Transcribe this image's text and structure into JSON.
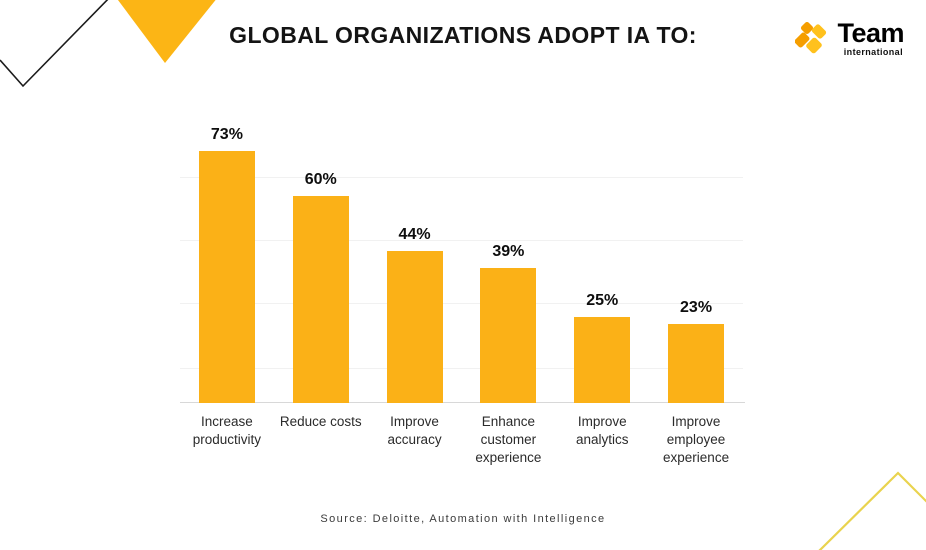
{
  "page": {
    "title": "GLOBAL ORGANIZATIONS ADOPT IA TO:",
    "source": "Source: Deloitte, Automation with Intelligence"
  },
  "logo": {
    "name": "Team",
    "subtitle": "international",
    "icon": "team-pinwheel-icon"
  },
  "colors": {
    "bar": "#FBB117",
    "logo_dark": "#F59E00",
    "logo_bright": "#FFC11D",
    "corner_diamond": "#FCB515",
    "corner_outline": "#1b1b1b",
    "peak_line": "#E9D34E",
    "gridline": "#F1F1F1",
    "baseline": "#D8D8D8",
    "title_text": "#141414"
  },
  "chart_data": {
    "type": "bar",
    "title": "GLOBAL ORGANIZATIONS ADOPT IA TO:",
    "categories": [
      "Increase productivity",
      "Reduce costs",
      "Improve accuracy",
      "Enhance customer experience",
      "Improve analytics",
      "Improve employee experience"
    ],
    "values": [
      73,
      60,
      44,
      39,
      25,
      23
    ],
    "labels": [
      "73%",
      "60%",
      "44%",
      "39%",
      "25%",
      "23%"
    ],
    "xlabel": "",
    "ylabel": "",
    "ylim": [
      0,
      80
    ],
    "grid": "horizontal-faint",
    "legend": "none",
    "bar_color": "#FBB117",
    "source": "Source: Deloitte, Automation with Intelligence"
  }
}
